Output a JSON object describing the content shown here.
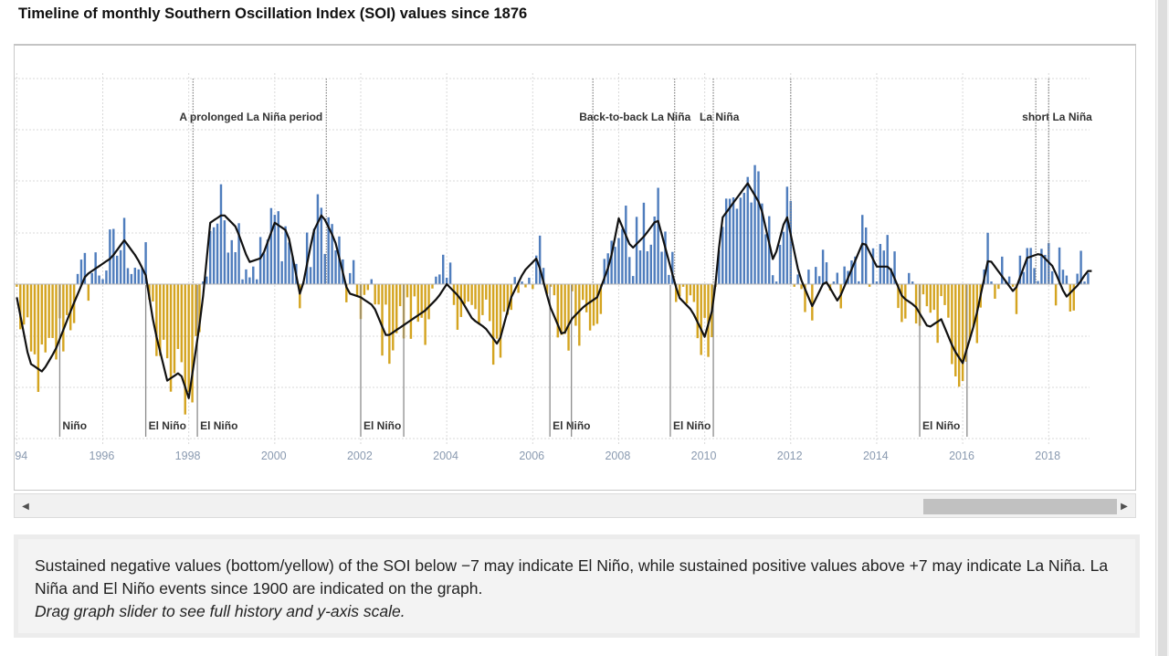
{
  "page": {
    "title": "Timeline of monthly Southern Oscillation Index (SOI) values since 1876"
  },
  "caption": {
    "line1": "Sustained negative values (bottom/yellow) of the SOI below −7 may indicate El Niño, while sustained positive values above +7 may indicate La Niña. La Niña and El Niño events since 1900 are indicated on the graph.",
    "note": "Drag graph slider to see full history and y-axis scale."
  },
  "scrollbar": {
    "left_arrow_icon": "caret-left-icon",
    "right_arrow_icon": "caret-right-icon",
    "position": 0.82
  },
  "colors": {
    "positive": "#4f7dbd",
    "negative": "#d4a420",
    "trend": "#111111",
    "grid": "#d9d9d9",
    "event_line": "#8c8c8c",
    "tick_label": "#8a9ab0"
  },
  "chart_data": {
    "type": "bar",
    "title": "",
    "xlabel": "",
    "ylabel": "",
    "x_tick_labels": [
      "94",
      "1996",
      "1998",
      "2000",
      "2002",
      "2004",
      "2006",
      "2008",
      "2010",
      "2012",
      "2014",
      "2016",
      "2018"
    ],
    "x_tick_years": [
      1994,
      1996,
      1998,
      2000,
      2002,
      2004,
      2006,
      2008,
      2010,
      2012,
      2014,
      2016,
      2018
    ],
    "xlim": [
      1993.95,
      2018.95
    ],
    "ylim": [
      -35,
      40
    ],
    "grid": true,
    "events": [
      {
        "label": "Niño",
        "year": 1995.0,
        "kind": "el-nino"
      },
      {
        "label": "El Niño",
        "year": 1997.0,
        "kind": "el-nino"
      },
      {
        "label": "El Niño",
        "year": 1998.2,
        "kind": "el-nino"
      },
      {
        "label": "A prolonged La Niña period",
        "year": 1998.1,
        "kind": "la-nina"
      },
      {
        "label": "",
        "year": 2001.2,
        "kind": "la-nina"
      },
      {
        "label": "El Niño",
        "year": 2002.0,
        "kind": "el-nino"
      },
      {
        "label": "",
        "year": 2003.0,
        "kind": "el-nino"
      },
      {
        "label": "El Niño",
        "year": 2006.4,
        "kind": "el-nino"
      },
      {
        "label": "",
        "year": 2006.9,
        "kind": "el-nino"
      },
      {
        "label": "Back-to-back La Niña",
        "year": 2007.4,
        "kind": "la-nina"
      },
      {
        "label": "",
        "year": 2009.3,
        "kind": "la-nina"
      },
      {
        "label": "El Niño",
        "year": 2009.2,
        "kind": "el-nino"
      },
      {
        "label": "",
        "year": 2010.2,
        "kind": "el-nino"
      },
      {
        "label": "La Niña",
        "year": 2010.2,
        "kind": "la-nina"
      },
      {
        "label": "",
        "year": 2012.0,
        "kind": "la-nina"
      },
      {
        "label": "El Niño",
        "year": 2015.0,
        "kind": "el-nino"
      },
      {
        "label": "",
        "year": 2016.1,
        "kind": "el-nino"
      },
      {
        "label": "short La Niña",
        "year": 2017.7,
        "kind": "la-nina"
      },
      {
        "label": "",
        "year": 2018.0,
        "kind": "la-nina"
      }
    ],
    "anchors": [
      [
        1994.0,
        -3
      ],
      [
        1994.3,
        -18
      ],
      [
        1994.6,
        -20
      ],
      [
        1994.9,
        -15
      ],
      [
        1995.3,
        -5
      ],
      [
        1995.6,
        2
      ],
      [
        1995.9,
        4
      ],
      [
        1996.2,
        6
      ],
      [
        1996.5,
        10
      ],
      [
        1996.8,
        6
      ],
      [
        1997.0,
        2
      ],
      [
        1997.2,
        -10
      ],
      [
        1997.5,
        -22
      ],
      [
        1997.8,
        -20
      ],
      [
        1998.0,
        -26
      ],
      [
        1998.3,
        -6
      ],
      [
        1998.5,
        14
      ],
      [
        1998.8,
        16
      ],
      [
        1999.1,
        13
      ],
      [
        1999.4,
        5
      ],
      [
        1999.7,
        6
      ],
      [
        2000.0,
        14
      ],
      [
        2000.3,
        12
      ],
      [
        2000.6,
        -3
      ],
      [
        2000.9,
        12
      ],
      [
        2001.1,
        16
      ],
      [
        2001.4,
        10
      ],
      [
        2001.7,
        -2
      ],
      [
        2002.0,
        -3
      ],
      [
        2002.3,
        -5
      ],
      [
        2002.6,
        -12
      ],
      [
        2002.9,
        -10
      ],
      [
        2003.2,
        -8
      ],
      [
        2003.5,
        -6
      ],
      [
        2003.8,
        -3
      ],
      [
        2004.0,
        0
      ],
      [
        2004.3,
        -3
      ],
      [
        2004.6,
        -8
      ],
      [
        2004.9,
        -10
      ],
      [
        2005.2,
        -14
      ],
      [
        2005.5,
        -3
      ],
      [
        2005.8,
        3
      ],
      [
        2006.1,
        6
      ],
      [
        2006.4,
        -5
      ],
      [
        2006.7,
        -12
      ],
      [
        2006.9,
        -8
      ],
      [
        2007.2,
        -5
      ],
      [
        2007.5,
        -3
      ],
      [
        2007.8,
        5
      ],
      [
        2008.0,
        15
      ],
      [
        2008.3,
        8
      ],
      [
        2008.6,
        11
      ],
      [
        2008.9,
        15
      ],
      [
        2009.2,
        4
      ],
      [
        2009.4,
        -3
      ],
      [
        2009.7,
        -6
      ],
      [
        2010.0,
        -12
      ],
      [
        2010.2,
        -5
      ],
      [
        2010.4,
        15
      ],
      [
        2010.7,
        19
      ],
      [
        2011.0,
        23
      ],
      [
        2011.3,
        18
      ],
      [
        2011.6,
        5
      ],
      [
        2011.9,
        16
      ],
      [
        2012.2,
        2
      ],
      [
        2012.5,
        -5
      ],
      [
        2012.8,
        1
      ],
      [
        2013.1,
        -4
      ],
      [
        2013.4,
        3
      ],
      [
        2013.7,
        10
      ],
      [
        2014.0,
        4
      ],
      [
        2014.3,
        4
      ],
      [
        2014.6,
        -3
      ],
      [
        2014.9,
        -5
      ],
      [
        2015.2,
        -10
      ],
      [
        2015.5,
        -8
      ],
      [
        2015.8,
        -15
      ],
      [
        2016.0,
        -18
      ],
      [
        2016.3,
        -8
      ],
      [
        2016.6,
        6
      ],
      [
        2016.9,
        2
      ],
      [
        2017.2,
        -2
      ],
      [
        2017.5,
        6
      ],
      [
        2017.8,
        7
      ],
      [
        2018.1,
        4
      ],
      [
        2018.4,
        -3
      ],
      [
        2018.7,
        0
      ],
      [
        2018.9,
        3
      ]
    ]
  }
}
